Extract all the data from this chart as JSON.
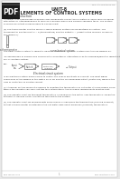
{
  "bg_color": "#e8e8e8",
  "page_bg": "#ffffff",
  "title_unit": "UNIT-8",
  "title_main": "ELEMENTS OF CONTROL SYSTEMS",
  "section1": "1.  Introduction",
  "pdf_label": "PDF",
  "url_top": "www.jntu.smartedge.org",
  "url_bottom_left": "www.specworld.in",
  "url_bottom_right": "www.smartworld.asia",
  "page_number": "1",
  "header_line_color": "#bbbbbb",
  "footer_line_color": "#bbbbbb",
  "text_color": "#333333",
  "light_text": "#888888",
  "diagram_color": "#555555"
}
